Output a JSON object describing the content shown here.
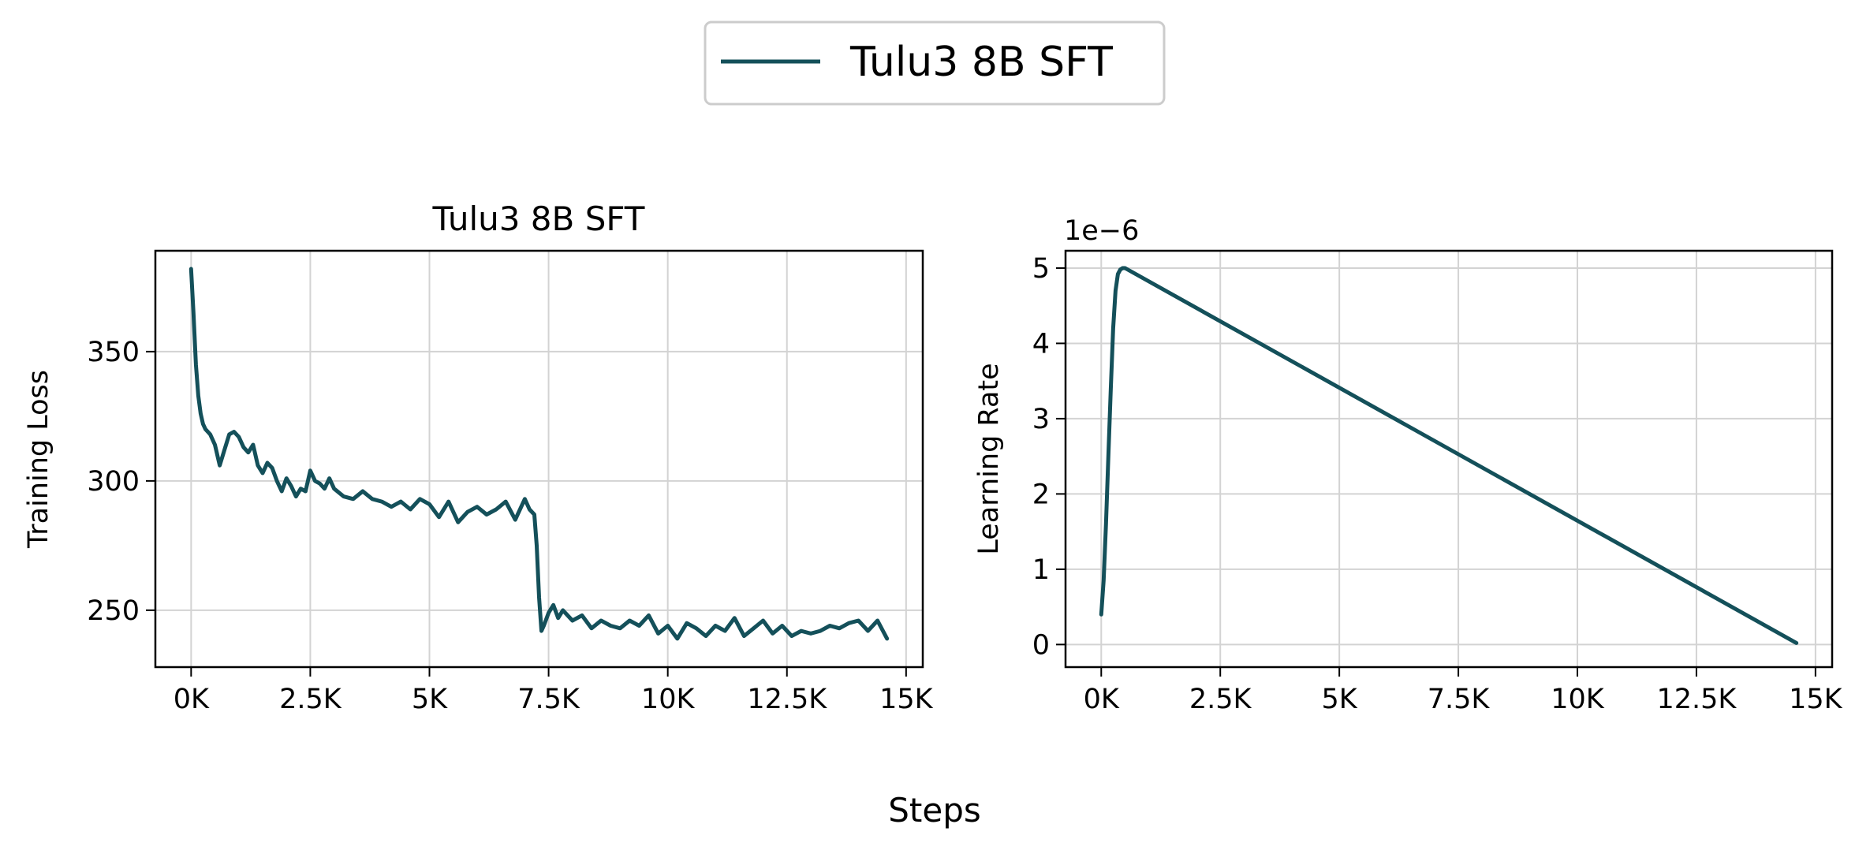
{
  "legend": {
    "label": "Tulu3 8B SFT"
  },
  "supxlabel": "Steps",
  "colors": {
    "series": "#14505a",
    "grid": "#d3d3d3",
    "axes": "#000000"
  },
  "chart_data": [
    {
      "type": "line",
      "title": "Tulu3 8B SFT",
      "xlabel": "",
      "ylabel": "Training Loss",
      "xlim": [
        -750,
        15350
      ],
      "ylim": [
        228,
        389
      ],
      "grid": true,
      "xticks": [
        0,
        2500,
        5000,
        7500,
        10000,
        12500,
        15000
      ],
      "xtick_labels": [
        "0K",
        "2.5K",
        "5K",
        "7.5K",
        "10K",
        "12.5K",
        "15K"
      ],
      "yticks": [
        250,
        300,
        350
      ],
      "ytick_labels": [
        "250",
        "300",
        "350"
      ],
      "series": [
        {
          "name": "Tulu3 8B SFT",
          "x": [
            0,
            50,
            100,
            150,
            200,
            250,
            300,
            400,
            500,
            600,
            700,
            800,
            900,
            1000,
            1100,
            1200,
            1300,
            1400,
            1500,
            1600,
            1700,
            1800,
            1900,
            2000,
            2100,
            2200,
            2300,
            2400,
            2500,
            2600,
            2700,
            2800,
            2900,
            3000,
            3200,
            3400,
            3600,
            3800,
            4000,
            4200,
            4400,
            4600,
            4800,
            5000,
            5200,
            5400,
            5600,
            5800,
            6000,
            6200,
            6400,
            6600,
            6800,
            7000,
            7100,
            7200,
            7250,
            7300,
            7350,
            7400,
            7500,
            7600,
            7700,
            7800,
            8000,
            8200,
            8400,
            8600,
            8800,
            9000,
            9200,
            9400,
            9600,
            9800,
            10000,
            10200,
            10400,
            10600,
            10800,
            11000,
            11200,
            11400,
            11600,
            11800,
            12000,
            12200,
            12400,
            12600,
            12800,
            13000,
            13200,
            13400,
            13600,
            13800,
            14000,
            14200,
            14400,
            14600
          ],
          "values": [
            382,
            365,
            345,
            333,
            326,
            322,
            320,
            318,
            314,
            306,
            312,
            318,
            319,
            317,
            313,
            311,
            314,
            306,
            303,
            307,
            305,
            300,
            296,
            301,
            298,
            294,
            297,
            296,
            304,
            300,
            299,
            297,
            301,
            297,
            294,
            293,
            296,
            293,
            292,
            290,
            292,
            289,
            293,
            291,
            286,
            292,
            284,
            288,
            290,
            287,
            289,
            292,
            285,
            293,
            289,
            287,
            275,
            255,
            242,
            244,
            249,
            252,
            247,
            250,
            246,
            248,
            243,
            246,
            244,
            243,
            246,
            244,
            248,
            241,
            244,
            239,
            245,
            243,
            240,
            244,
            242,
            247,
            240,
            243,
            246,
            241,
            244,
            240,
            242,
            241,
            242,
            244,
            243,
            245,
            246,
            242,
            246,
            239
          ]
        }
      ]
    },
    {
      "type": "line",
      "title": "",
      "xlabel": "",
      "ylabel": "Learning Rate",
      "xlim": [
        -750,
        15350
      ],
      "ylim": [
        -3e-07,
        5.23e-06
      ],
      "grid": true,
      "offset_text": "1e−6",
      "xticks": [
        0,
        2500,
        5000,
        7500,
        10000,
        12500,
        15000
      ],
      "xtick_labels": [
        "0K",
        "2.5K",
        "5K",
        "7.5K",
        "10K",
        "12.5K",
        "15K"
      ],
      "yticks": [
        0,
        1e-06,
        2e-06,
        3e-06,
        4e-06,
        5e-06
      ],
      "ytick_labels": [
        "0",
        "1",
        "2",
        "3",
        "4",
        "5"
      ],
      "series": [
        {
          "name": "Tulu3 8B SFT",
          "x": [
            0,
            50,
            100,
            150,
            200,
            250,
            300,
            350,
            400,
            450,
            500,
            14600
          ],
          "values": [
            4e-07,
            8.5e-07,
            1.6e-06,
            2.5e-06,
            3.4e-06,
            4.2e-06,
            4.7e-06,
            4.92e-06,
            4.98e-06,
            5e-06,
            5e-06,
            2e-08
          ]
        }
      ]
    }
  ]
}
